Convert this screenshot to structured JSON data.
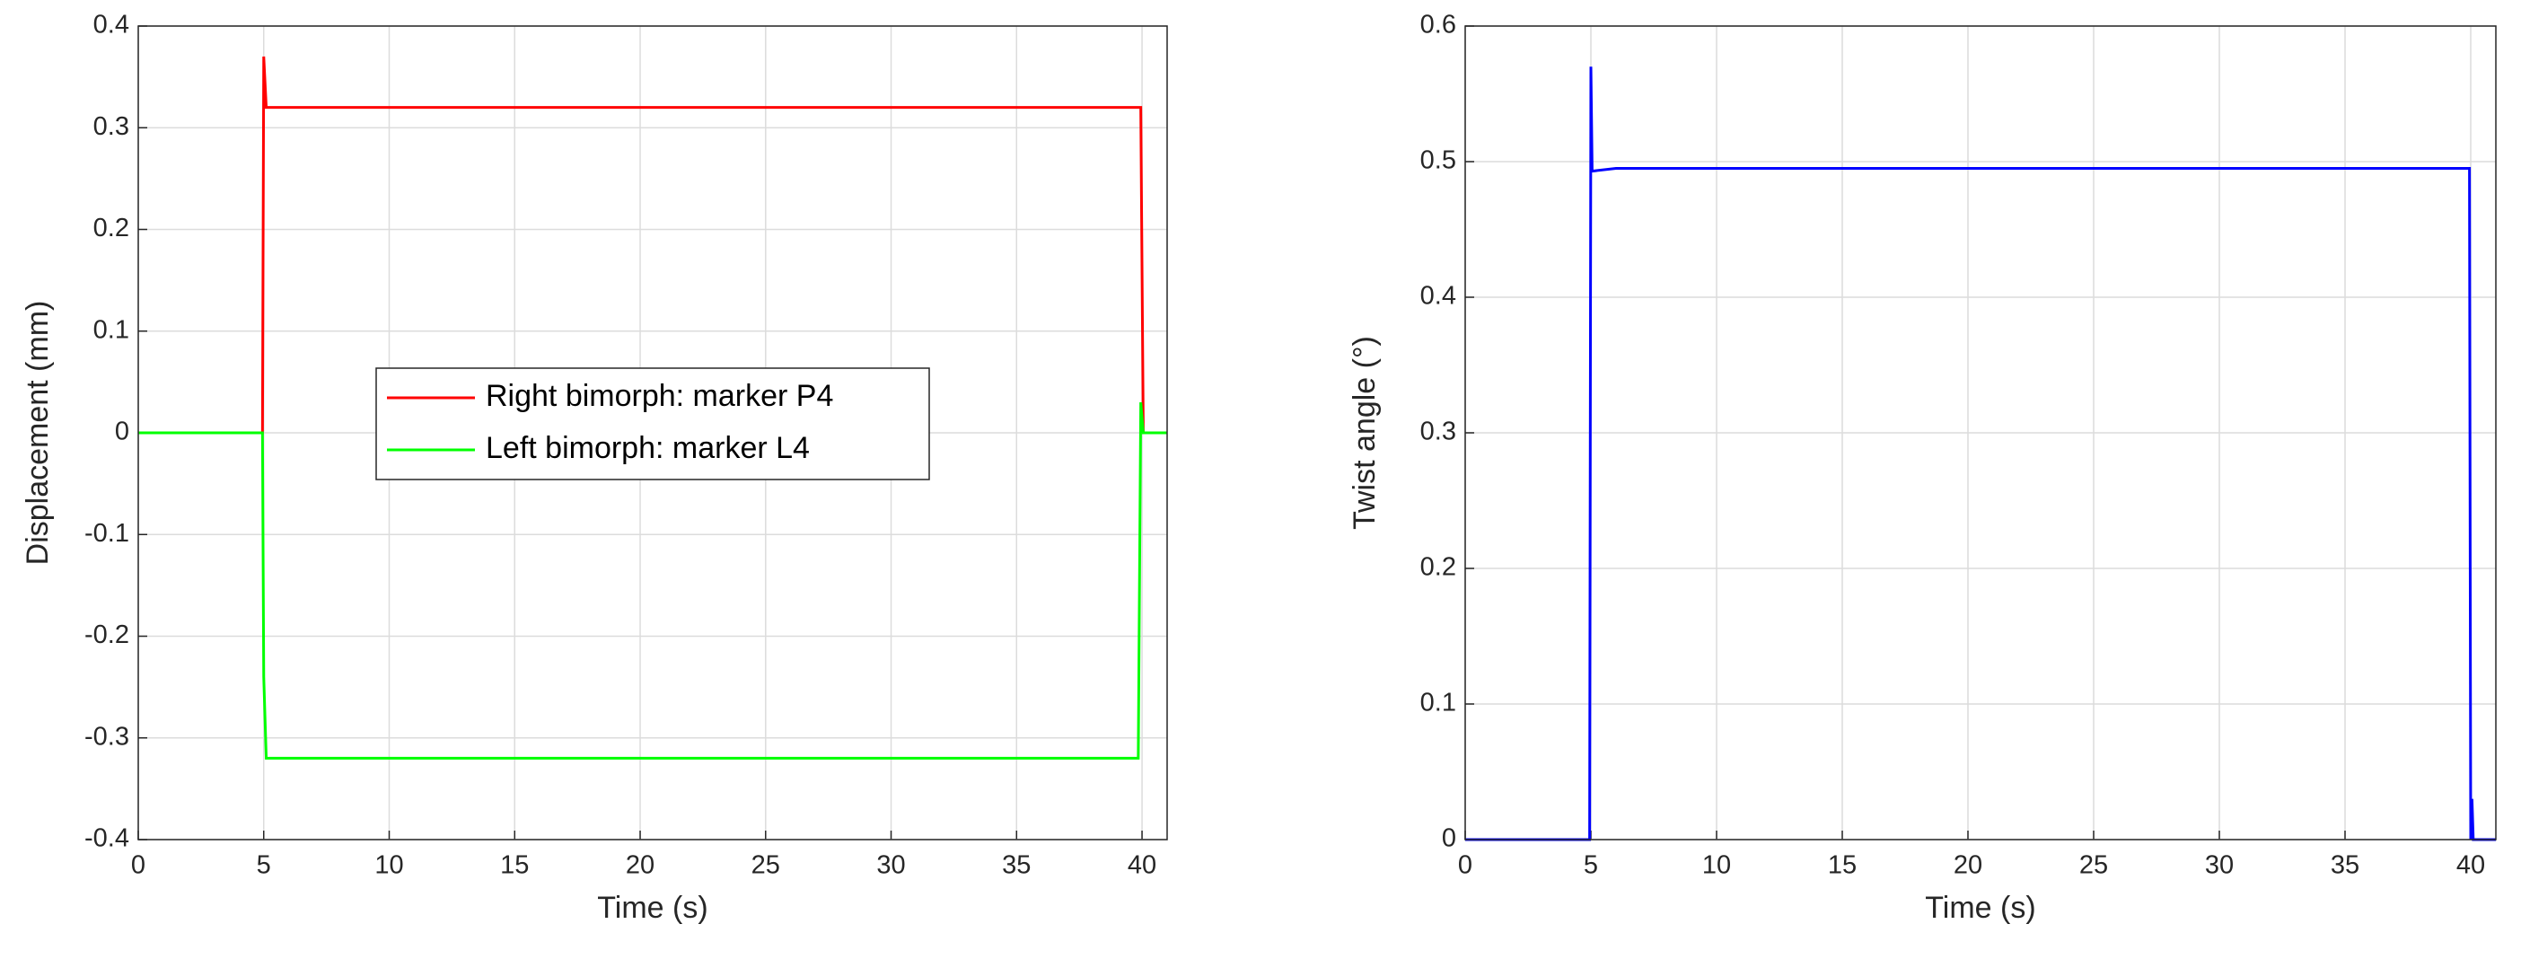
{
  "chart_data": [
    {
      "type": "line",
      "xlabel": "Time (s)",
      "ylabel": "Displacement (mm)",
      "x": [
        0,
        4.95,
        5.0,
        5.1,
        39.85,
        39.95,
        40.05,
        41
      ],
      "series": [
        {
          "name": "Right bimorph: marker P4",
          "color": "#ff0000",
          "values": [
            0,
            0,
            0.37,
            0.32,
            0.32,
            0.32,
            0,
            0
          ]
        },
        {
          "name": "Left bimorph: marker L4",
          "color": "#00ff00",
          "values": [
            0,
            0,
            -0.24,
            -0.32,
            -0.32,
            0.03,
            0,
            0
          ]
        }
      ],
      "xlim": [
        0,
        41
      ],
      "xticks": [
        0,
        5,
        10,
        15,
        20,
        25,
        30,
        35,
        40
      ],
      "ylim": [
        -0.4,
        0.4
      ],
      "yticks": [
        -0.4,
        -0.3,
        -0.2,
        -0.1,
        0,
        0.1,
        0.2,
        0.3,
        0.4
      ],
      "grid": true,
      "legend": "center"
    },
    {
      "type": "line",
      "xlabel": "Time (s)",
      "ylabel": "Twist angle (°)",
      "x": [
        0,
        4.95,
        5.0,
        5.05,
        6,
        39.95,
        40.0,
        40.05,
        40.1,
        41
      ],
      "series": [
        {
          "color": "#0000ff",
          "values": [
            0,
            0,
            0.57,
            0.493,
            0.495,
            0.495,
            0,
            0.03,
            0,
            0
          ]
        }
      ],
      "xlim": [
        0,
        41
      ],
      "xticks": [
        0,
        5,
        10,
        15,
        20,
        25,
        30,
        35,
        40
      ],
      "ylim": [
        0,
        0.6
      ],
      "yticks": [
        0,
        0.1,
        0.2,
        0.3,
        0.4,
        0.5,
        0.6
      ],
      "grid": true
    }
  ]
}
